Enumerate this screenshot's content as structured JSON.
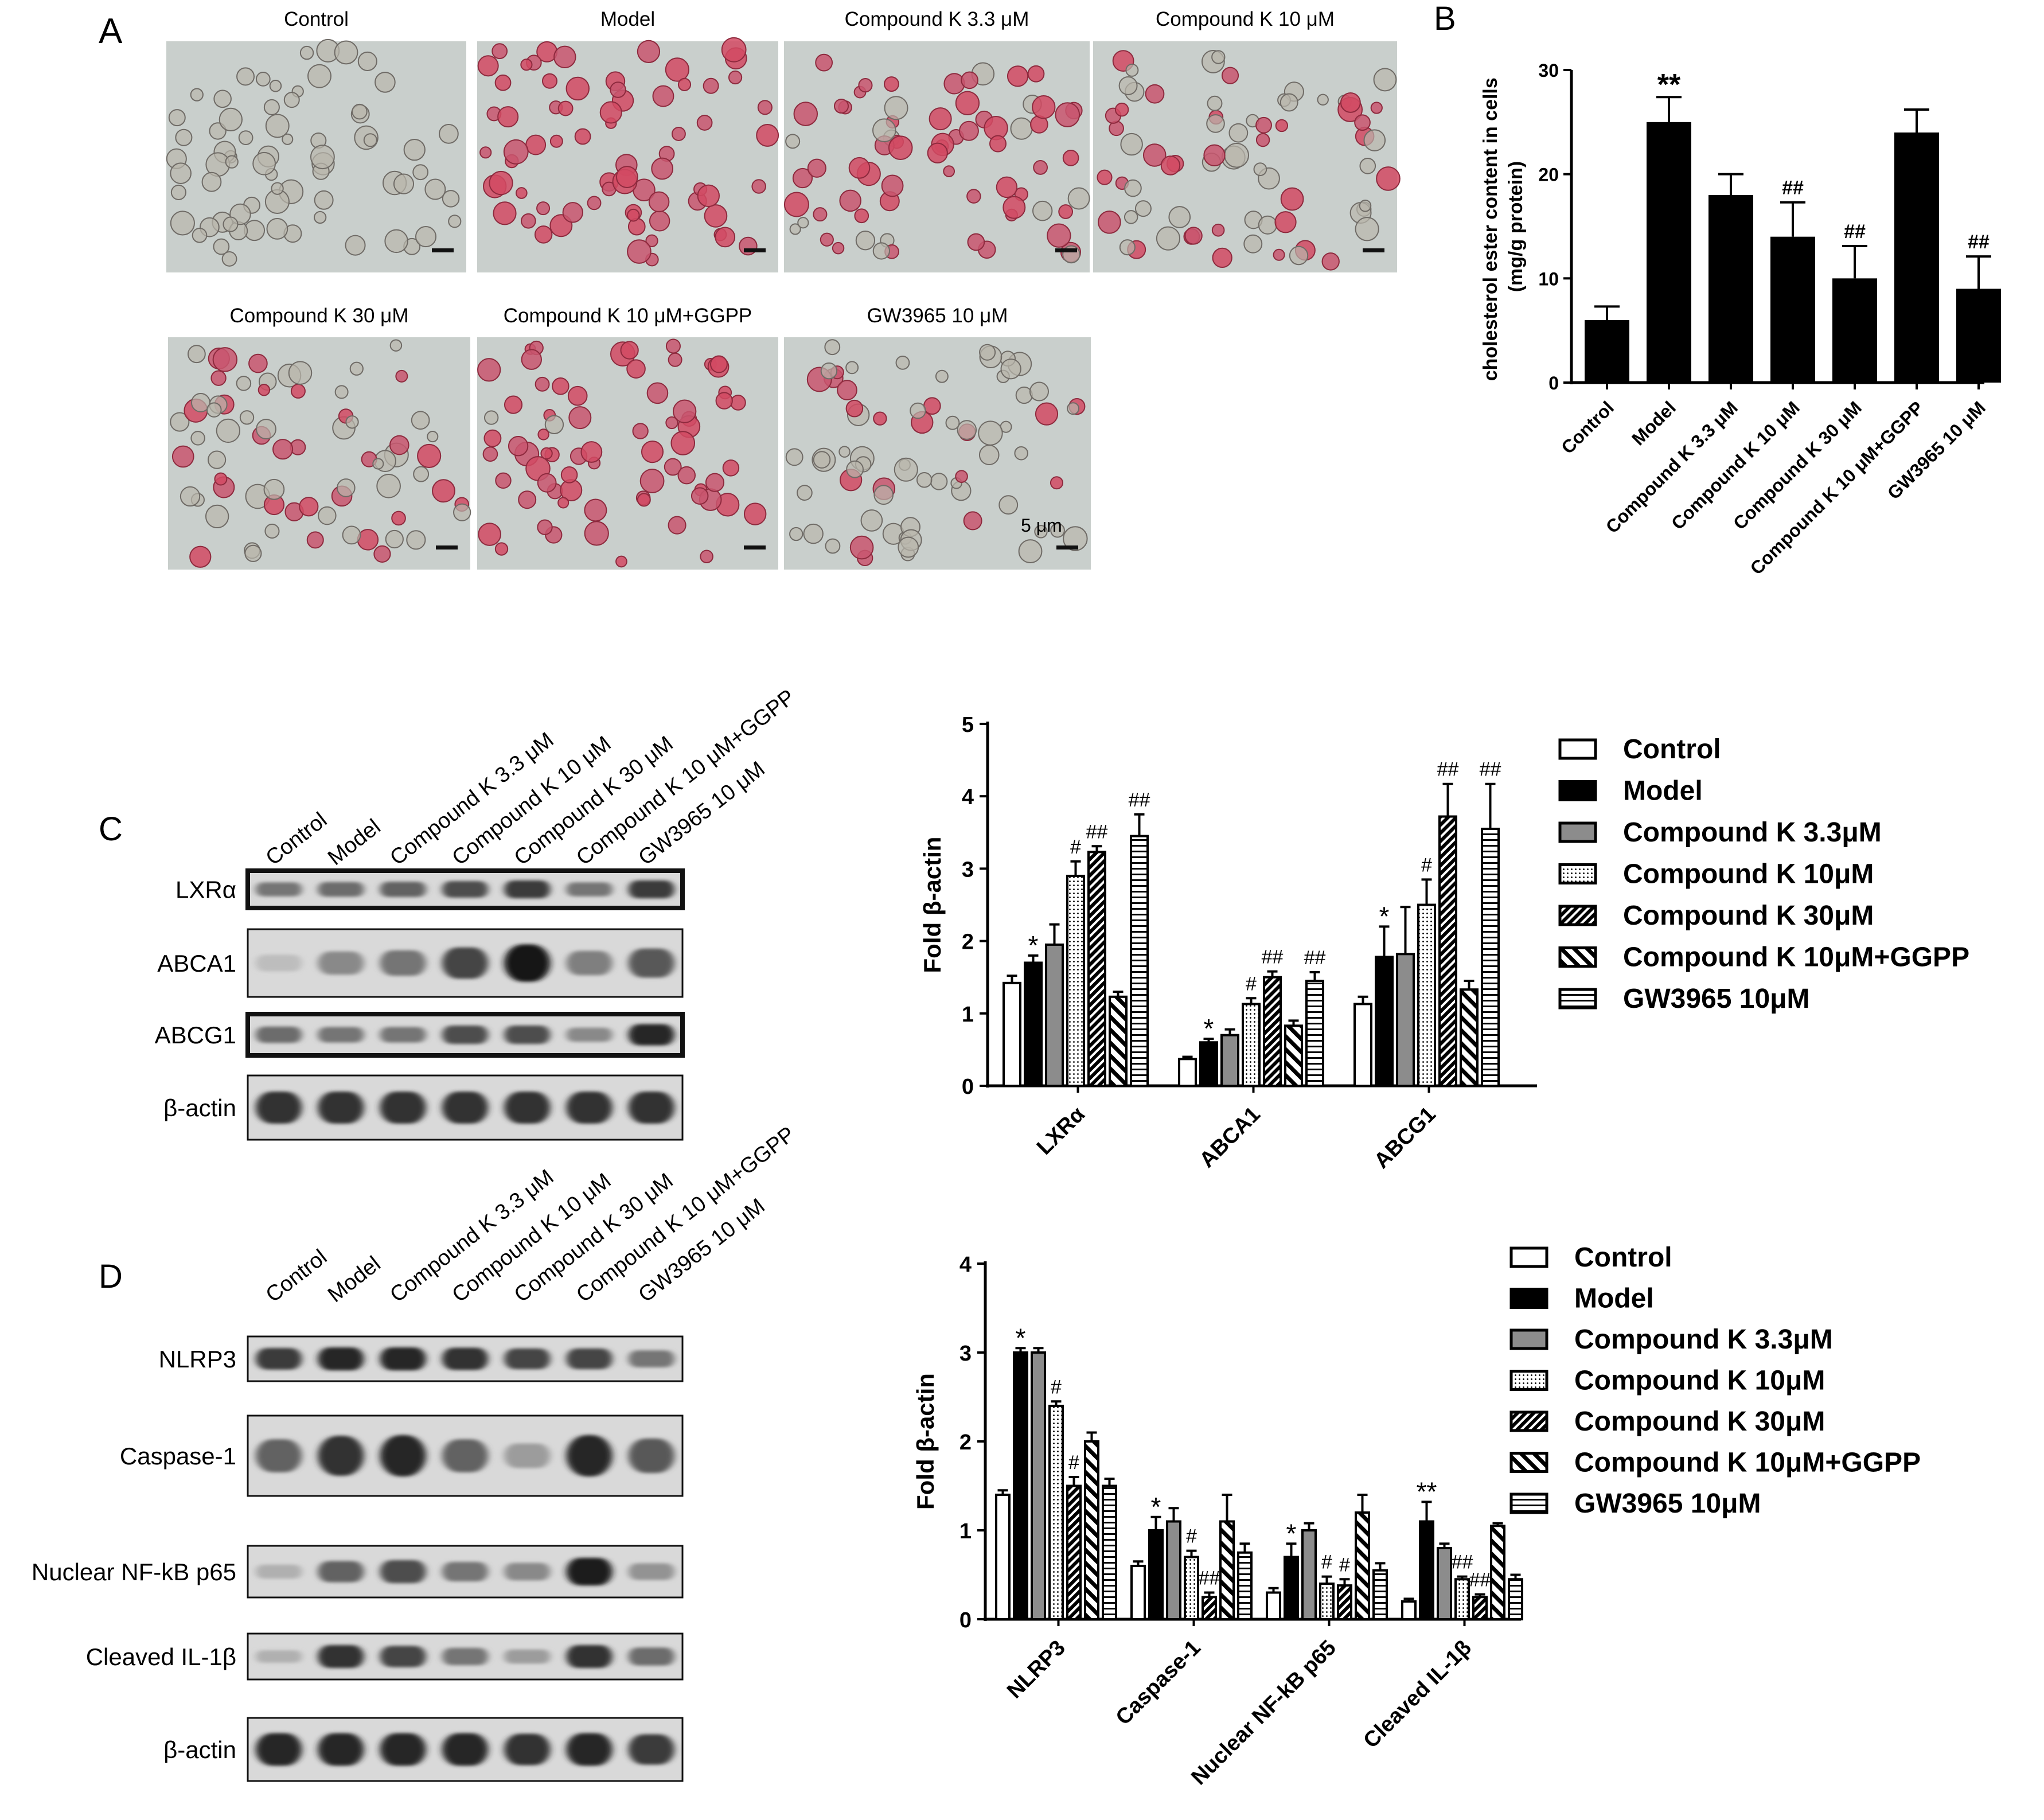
{
  "panels": {
    "A": "A",
    "B": "B",
    "C": "C",
    "D": "D"
  },
  "micrographs": {
    "tiles": [
      {
        "label": "Control",
        "stain": 0.0
      },
      {
        "label": "Model",
        "stain": 1.0
      },
      {
        "label": "Compound K 3.3 μM",
        "stain": 0.85
      },
      {
        "label": "Compound K 10 μM",
        "stain": 0.55
      },
      {
        "label": "Compound K 30 μM",
        "stain": 0.45
      },
      {
        "label": "Compound K 10 μM+GGPP",
        "stain": 0.95
      },
      {
        "label": "GW3965 10 μM",
        "stain": 0.3
      }
    ],
    "scale_bar_label": "5 μm"
  },
  "blot_lanes": [
    "Control",
    "Model",
    "Compound K 3.3 μM",
    "Compound K 10 μM",
    "Compound K 30 μM",
    "Compound K 10 μM+GGPP",
    "GW3965 10 μM"
  ],
  "western_C": [
    {
      "label": "LXRα",
      "levels": [
        0.45,
        0.5,
        0.55,
        0.65,
        0.75,
        0.45,
        0.75
      ]
    },
    {
      "label": "ABCA1",
      "levels": [
        0.08,
        0.35,
        0.45,
        0.7,
        0.95,
        0.4,
        0.6
      ]
    },
    {
      "label": "ABCG1",
      "levels": [
        0.5,
        0.45,
        0.45,
        0.65,
        0.65,
        0.35,
        0.85
      ]
    },
    {
      "label": "β-actin",
      "levels": [
        0.8,
        0.8,
        0.8,
        0.8,
        0.8,
        0.8,
        0.8
      ]
    }
  ],
  "western_D": [
    {
      "label": "NLRP3",
      "levels": [
        0.75,
        0.85,
        0.85,
        0.8,
        0.7,
        0.7,
        0.45
      ]
    },
    {
      "label": "Caspase-1",
      "levels": [
        0.55,
        0.8,
        0.85,
        0.55,
        0.25,
        0.85,
        0.6
      ]
    },
    {
      "label": "Nuclear NF-kB p65",
      "levels": [
        0.15,
        0.55,
        0.65,
        0.45,
        0.35,
        0.9,
        0.3
      ]
    },
    {
      "label": "Cleaved IL-1β",
      "levels": [
        0.15,
        0.8,
        0.7,
        0.45,
        0.25,
        0.8,
        0.5
      ]
    },
    {
      "label": "β-actin",
      "levels": [
        0.85,
        0.85,
        0.85,
        0.85,
        0.8,
        0.85,
        0.75
      ]
    }
  ],
  "chart_data": [
    {
      "panel": "B",
      "type": "bar",
      "categories": [
        "Control",
        "Model",
        "Compound K 3.3 μM",
        "Compound K 10 μM",
        "Compound K 30 μM",
        "Compound K 10 μM+GGPP",
        "GW3965 10 μM"
      ],
      "values": [
        6,
        25,
        18,
        14,
        10,
        24,
        9
      ],
      "errors": [
        1.3,
        2.4,
        2.0,
        3.3,
        3.1,
        2.2,
        3.1
      ],
      "annotations": [
        "",
        "**",
        "",
        "##",
        "##",
        "",
        "##"
      ],
      "ylabel": "cholesterol ester content in cells (mg/g protein)",
      "ylim": [
        0,
        30
      ],
      "yticks": [
        0,
        10,
        20,
        30
      ]
    },
    {
      "panel": "C",
      "type": "bar",
      "categories": [
        "LXRα",
        "ABCA1",
        "ABCG1"
      ],
      "ylabel": "Fold β-actin",
      "ylim": [
        0,
        5
      ],
      "yticks": [
        0,
        1,
        2,
        3,
        4,
        5
      ],
      "legend_position": "right",
      "series": [
        {
          "name": "Control",
          "values": [
            1.42,
            0.37,
            1.13
          ],
          "errors": [
            0.1,
            0.03,
            0.1
          ],
          "annotations": [
            "",
            "",
            ""
          ]
        },
        {
          "name": "Model",
          "values": [
            1.7,
            0.6,
            1.78
          ],
          "errors": [
            0.1,
            0.05,
            0.42
          ],
          "annotations": [
            "*",
            "*",
            "*"
          ]
        },
        {
          "name": "Compound K 3.3μM",
          "values": [
            1.95,
            0.7,
            1.82
          ],
          "errors": [
            0.28,
            0.08,
            0.65
          ],
          "annotations": [
            "",
            "",
            ""
          ]
        },
        {
          "name": "Compound K 10μM",
          "values": [
            2.9,
            1.13,
            2.5
          ],
          "errors": [
            0.2,
            0.08,
            0.35
          ],
          "annotations": [
            "#",
            "#",
            "#"
          ]
        },
        {
          "name": "Compound K 30μM",
          "values": [
            3.23,
            1.5,
            3.72
          ],
          "errors": [
            0.08,
            0.08,
            0.45
          ],
          "annotations": [
            "##",
            "##",
            "##"
          ]
        },
        {
          "name": "Compound K 10μM+GGPP",
          "values": [
            1.23,
            0.83,
            1.33
          ],
          "errors": [
            0.07,
            0.07,
            0.12
          ],
          "annotations": [
            "",
            "",
            ""
          ]
        },
        {
          "name": "GW3965 10μM",
          "values": [
            3.45,
            1.45,
            3.55
          ],
          "errors": [
            0.3,
            0.12,
            0.62
          ],
          "annotations": [
            "##",
            "##",
            "##"
          ]
        }
      ]
    },
    {
      "panel": "D",
      "type": "bar",
      "categories": [
        "NLRP3",
        "Caspase-1",
        "Nuclear NF-kB p65",
        "Cleaved IL-1β"
      ],
      "ylabel": "Fold β-actin",
      "ylim": [
        0,
        4
      ],
      "yticks": [
        0,
        1,
        2,
        3,
        4
      ],
      "legend_position": "right",
      "series": [
        {
          "name": "Control",
          "values": [
            1.4,
            0.6,
            0.3,
            0.2
          ],
          "errors": [
            0.05,
            0.05,
            0.05,
            0.03
          ],
          "annotations": [
            "",
            "",
            "",
            ""
          ]
        },
        {
          "name": "Model",
          "values": [
            3.0,
            1.0,
            0.7,
            1.1
          ],
          "errors": [
            0.05,
            0.15,
            0.15,
            0.22
          ],
          "annotations": [
            "*",
            "*",
            "*",
            "**"
          ]
        },
        {
          "name": "Compound K 3.3μM",
          "values": [
            3.0,
            1.1,
            1.0,
            0.8
          ],
          "errors": [
            0.05,
            0.15,
            0.08,
            0.05
          ],
          "annotations": [
            "",
            "",
            "",
            ""
          ]
        },
        {
          "name": "Compound K 10μM",
          "values": [
            2.4,
            0.7,
            0.4,
            0.45
          ],
          "errors": [
            0.05,
            0.07,
            0.08,
            0.03
          ],
          "annotations": [
            "#",
            "#",
            "#",
            "##"
          ]
        },
        {
          "name": "Compound K 30μM",
          "values": [
            1.5,
            0.25,
            0.38,
            0.25
          ],
          "errors": [
            0.1,
            0.05,
            0.07,
            0.03
          ],
          "annotations": [
            "#",
            "##",
            "#",
            "##"
          ]
        },
        {
          "name": "Compound K 10μM+GGPP",
          "values": [
            2.0,
            1.1,
            1.2,
            1.05
          ],
          "errors": [
            0.1,
            0.3,
            0.2,
            0.03
          ],
          "annotations": [
            "",
            "",
            "",
            ""
          ]
        },
        {
          "name": "GW3965 10μM",
          "values": [
            1.5,
            0.75,
            0.55,
            0.45
          ],
          "errors": [
            0.08,
            0.1,
            0.08,
            0.05
          ],
          "annotations": [
            "",
            "",
            "",
            ""
          ]
        }
      ]
    }
  ]
}
